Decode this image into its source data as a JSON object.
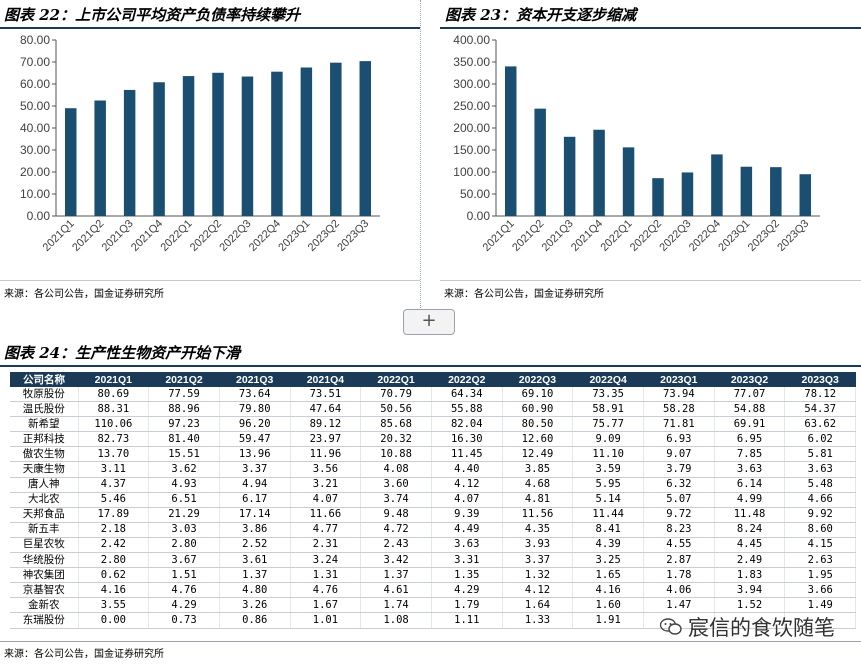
{
  "chart_data": [
    {
      "type": "bar",
      "title": "图表 22：上市公司平均资产负债率持续攀升",
      "categories": [
        "2021Q1",
        "2021Q2",
        "2021Q3",
        "2021Q4",
        "2022Q1",
        "2022Q2",
        "2022Q3",
        "2022Q4",
        "2023Q1",
        "2023Q2",
        "2023Q3"
      ],
      "values": [
        49.0,
        52.5,
        57.3,
        60.8,
        63.6,
        65.1,
        63.4,
        65.6,
        67.5,
        69.7,
        70.4
      ],
      "ylim": [
        0,
        80
      ],
      "yticks": [
        "0.00",
        "10.00",
        "20.00",
        "30.00",
        "40.00",
        "50.00",
        "60.00",
        "70.00",
        "80.00"
      ],
      "xlabel": "",
      "ylabel": "",
      "bar_color": "#1b4f72",
      "source": "来源：各公司公告，国金证券研究所"
    },
    {
      "type": "bar",
      "title": "图表 23：资本开支逐步缩减",
      "categories": [
        "2021Q1",
        "2021Q2",
        "2021Q3",
        "2021Q4",
        "2022Q1",
        "2022Q2",
        "2022Q3",
        "2022Q4",
        "2023Q1",
        "2023Q2",
        "2023Q3"
      ],
      "values": [
        340,
        244,
        180,
        196,
        156,
        86,
        99,
        140,
        112,
        111,
        95
      ],
      "ylim": [
        0,
        400
      ],
      "yticks": [
        "0.00",
        "50.00",
        "100.00",
        "150.00",
        "200.00",
        "250.00",
        "300.00",
        "350.00",
        "400.00"
      ],
      "xlabel": "",
      "ylabel": "",
      "bar_color": "#1b4f72",
      "source": "来源：各公司公告，国金证券研究所"
    },
    {
      "type": "table",
      "title": "图表 24：生产性生物资产开始下滑",
      "columns": [
        "公司名称",
        "2021Q1",
        "2021Q2",
        "2021Q3",
        "2021Q4",
        "2022Q1",
        "2022Q2",
        "2022Q3",
        "2022Q4",
        "2023Q1",
        "2023Q2",
        "2023Q3"
      ],
      "rows": [
        [
          "牧原股份",
          "80.69",
          "77.59",
          "73.64",
          "73.51",
          "70.79",
          "64.34",
          "69.10",
          "73.35",
          "73.94",
          "77.07",
          "78.12"
        ],
        [
          "温氏股份",
          "88.31",
          "88.96",
          "79.80",
          "47.64",
          "50.56",
          "55.88",
          "60.90",
          "58.91",
          "58.28",
          "54.88",
          "54.37"
        ],
        [
          "新希望",
          "110.06",
          "97.23",
          "96.20",
          "89.12",
          "85.68",
          "82.04",
          "80.50",
          "75.77",
          "71.81",
          "69.91",
          "63.62"
        ],
        [
          "正邦科技",
          "82.73",
          "81.40",
          "59.47",
          "23.97",
          "20.32",
          "16.30",
          "12.60",
          "9.09",
          "6.93",
          "6.95",
          "6.02"
        ],
        [
          "傲农生物",
          "13.70",
          "15.51",
          "13.96",
          "11.96",
          "10.88",
          "11.45",
          "12.49",
          "11.10",
          "9.07",
          "7.85",
          "5.81"
        ],
        [
          "天康生物",
          "3.11",
          "3.62",
          "3.37",
          "3.56",
          "4.08",
          "4.40",
          "3.85",
          "3.59",
          "3.79",
          "3.63",
          "3.63"
        ],
        [
          "唐人神",
          "4.37",
          "4.93",
          "4.94",
          "3.21",
          "3.60",
          "4.12",
          "4.68",
          "5.95",
          "6.32",
          "6.14",
          "5.48"
        ],
        [
          "大北农",
          "5.46",
          "6.51",
          "6.17",
          "4.07",
          "3.74",
          "4.07",
          "4.81",
          "5.14",
          "5.07",
          "4.99",
          "4.66"
        ],
        [
          "天邦食品",
          "17.89",
          "21.29",
          "17.14",
          "11.66",
          "9.48",
          "9.39",
          "11.56",
          "11.44",
          "9.72",
          "11.48",
          "9.92"
        ],
        [
          "新五丰",
          "2.18",
          "3.03",
          "3.86",
          "4.77",
          "4.72",
          "4.49",
          "4.35",
          "8.41",
          "8.23",
          "8.24",
          "8.60"
        ],
        [
          "巨星农牧",
          "2.42",
          "2.80",
          "2.52",
          "2.31",
          "2.43",
          "3.63",
          "3.93",
          "4.39",
          "4.55",
          "4.45",
          "4.15"
        ],
        [
          "华统股份",
          "2.80",
          "3.67",
          "3.61",
          "3.24",
          "3.42",
          "3.31",
          "3.37",
          "3.25",
          "2.87",
          "2.49",
          "2.63"
        ],
        [
          "神农集团",
          "0.62",
          "1.51",
          "1.37",
          "1.31",
          "1.37",
          "1.35",
          "1.32",
          "1.65",
          "1.78",
          "1.83",
          "1.95"
        ],
        [
          "京基智农",
          "4.16",
          "4.76",
          "4.80",
          "4.76",
          "4.61",
          "4.29",
          "4.12",
          "4.16",
          "4.06",
          "3.94",
          "3.66"
        ],
        [
          "金新农",
          "3.55",
          "4.29",
          "3.26",
          "1.67",
          "1.74",
          "1.79",
          "1.64",
          "1.60",
          "1.47",
          "1.52",
          "1.49"
        ],
        [
          "东瑞股份",
          "0.00",
          "0.73",
          "0.86",
          "1.01",
          "1.08",
          "1.11",
          "1.33",
          "1.91",
          "",
          "",
          ""
        ]
      ],
      "source": "来源：各公司公告，国金证券研究所"
    }
  ],
  "ui": {
    "add_button_label": "+",
    "watermark": "宸信的食饮随笔"
  }
}
